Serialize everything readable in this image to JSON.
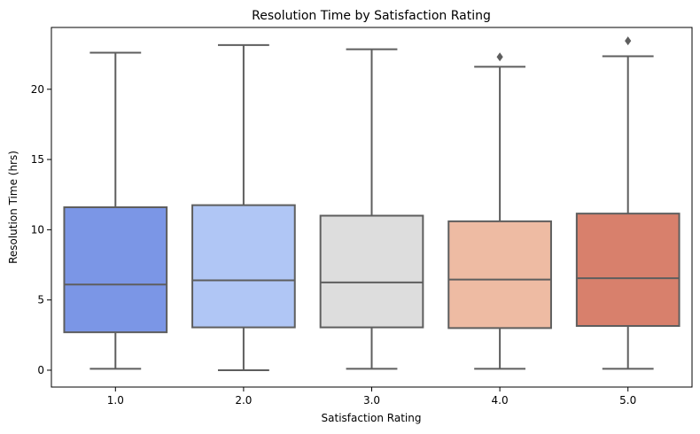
{
  "chart_data": {
    "type": "box",
    "title": "Resolution Time by Satisfaction Rating",
    "xlabel": "Satisfaction Rating",
    "ylabel": "Resolution Time (hrs)",
    "ylim": [
      -1.2,
      24.4
    ],
    "yticks": [
      0,
      5,
      10,
      15,
      20
    ],
    "grid": false,
    "legend": "none",
    "categories": [
      "1.0",
      "2.0",
      "3.0",
      "4.0",
      "5.0"
    ],
    "boxes": [
      {
        "category": "1.0",
        "min": 0.1,
        "q1": 2.7,
        "median": 6.1,
        "q3": 11.6,
        "max": 22.6,
        "outliers": [],
        "color": "#7b96e6"
      },
      {
        "category": "2.0",
        "min": 0.0,
        "q1": 3.05,
        "median": 6.4,
        "q3": 11.75,
        "max": 23.15,
        "outliers": [],
        "color": "#b0c6f5"
      },
      {
        "category": "3.0",
        "min": 0.1,
        "q1": 3.05,
        "median": 6.25,
        "q3": 11.0,
        "max": 22.85,
        "outliers": [],
        "color": "#dddddd"
      },
      {
        "category": "4.0",
        "min": 0.1,
        "q1": 3.0,
        "median": 6.45,
        "q3": 10.6,
        "max": 21.6,
        "outliers": [
          22.3
        ],
        "color": "#eebba3"
      },
      {
        "category": "5.0",
        "min": 0.1,
        "q1": 3.15,
        "median": 6.55,
        "q3": 11.15,
        "max": 22.35,
        "outliers": [
          23.45
        ],
        "color": "#d8806c"
      }
    ],
    "line_color": "#5e5e5e"
  }
}
